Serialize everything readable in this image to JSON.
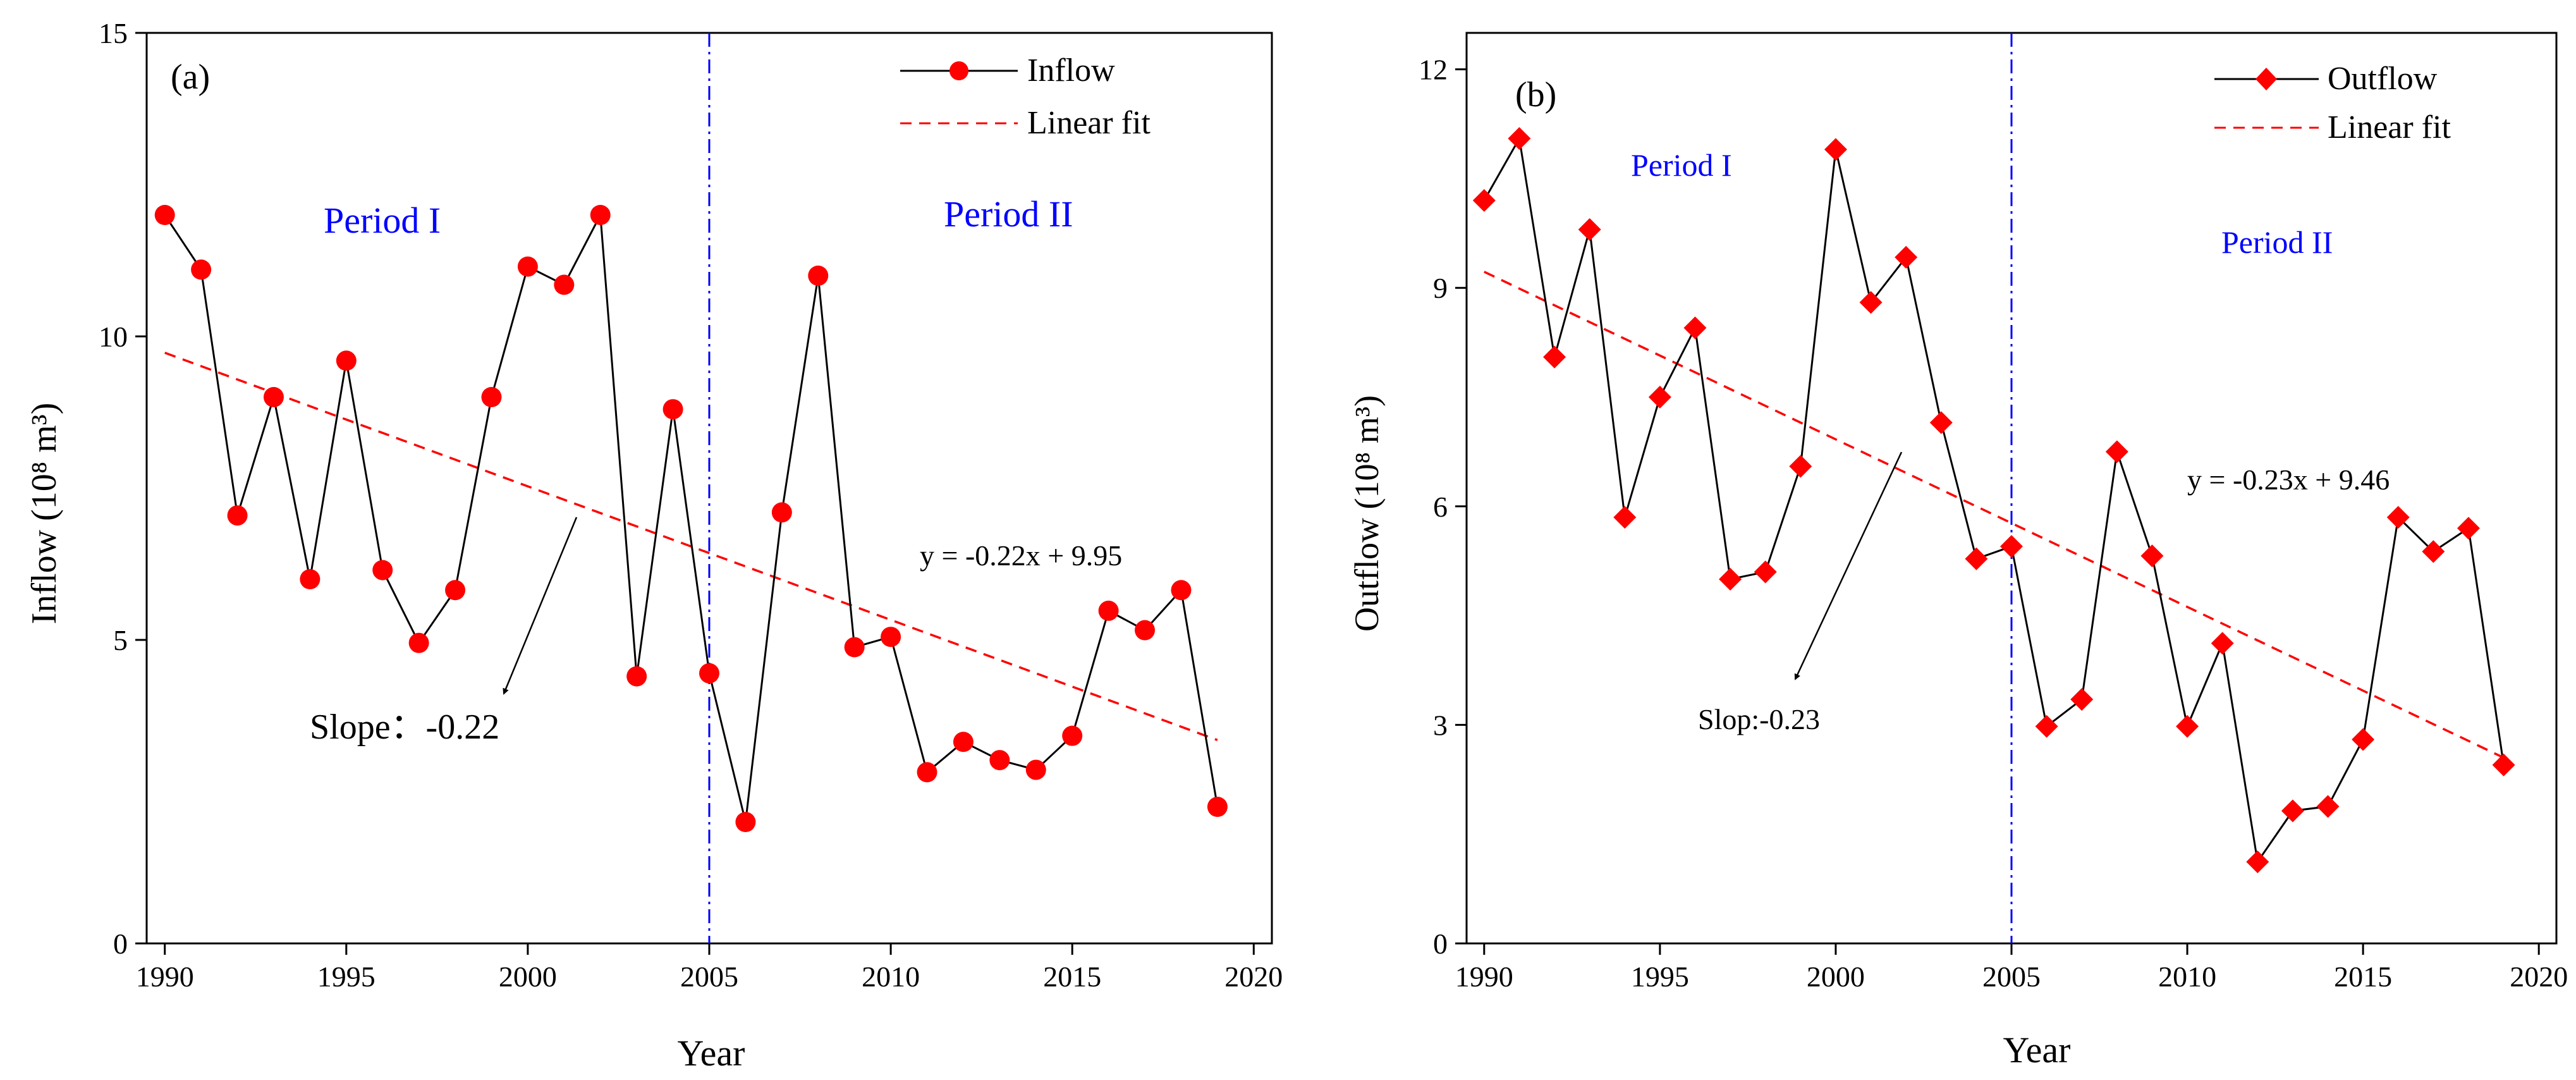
{
  "colors": {
    "series_line": "#000000",
    "marker": "#ff0000",
    "fit_line": "#ff0000",
    "divider": "#0000ff",
    "period_text": "#0000ff"
  },
  "chart_data": [
    {
      "type": "line",
      "panel_label": "(a)",
      "xlabel": "Year",
      "ylabel": "Inflow (10⁸ m³)",
      "xlim": [
        1989.5,
        2020.5
      ],
      "ylim": [
        0,
        15
      ],
      "xticks": [
        1990,
        1995,
        2000,
        2005,
        2010,
        2015,
        2020
      ],
      "yticks": [
        0,
        5,
        10,
        15
      ],
      "grid": false,
      "legend_position": "top-right",
      "x": [
        1990,
        1991,
        1992,
        1993,
        1994,
        1995,
        1996,
        1997,
        1998,
        1999,
        2000,
        2001,
        2002,
        2003,
        2004,
        2005,
        2006,
        2007,
        2008,
        2009,
        2010,
        2011,
        2012,
        2013,
        2014,
        2015,
        2016,
        2017,
        2018,
        2019
      ],
      "series": [
        {
          "name": "Inflow",
          "marker": "circle",
          "values": [
            12.0,
            11.1,
            7.05,
            9.0,
            6.0,
            9.6,
            6.15,
            4.95,
            5.82,
            9.0,
            11.15,
            10.85,
            12.0,
            4.4,
            8.8,
            4.45,
            2.0,
            7.1,
            11.0,
            4.88,
            5.05,
            2.82,
            3.32,
            3.02,
            2.86,
            3.42,
            5.48,
            5.16,
            5.82,
            2.25
          ]
        }
      ],
      "fit": {
        "name": "Linear fit",
        "x": [
          1990,
          2019
        ],
        "y": [
          9.73,
          3.35
        ]
      },
      "divider_x": 2005,
      "annotations": {
        "period1": "Period I",
        "period2": "Period II",
        "equation": "y = -0.22x + 9.95",
        "slope": "Slope：-0.22"
      }
    },
    {
      "type": "line",
      "panel_label": "(b)",
      "xlabel": "Year",
      "ylabel": "Outflow (10⁸ m³)",
      "xlim": [
        1989.5,
        2020.5
      ],
      "ylim": [
        0,
        12.5
      ],
      "xticks": [
        1990,
        1995,
        2000,
        2005,
        2010,
        2015,
        2020
      ],
      "yticks": [
        0,
        3,
        6,
        9,
        12
      ],
      "grid": false,
      "legend_position": "top-right",
      "x": [
        1990,
        1991,
        1992,
        1993,
        1994,
        1995,
        1996,
        1997,
        1998,
        1999,
        2000,
        2001,
        2002,
        2003,
        2004,
        2005,
        2006,
        2007,
        2008,
        2009,
        2010,
        2011,
        2012,
        2013,
        2014,
        2015,
        2016,
        2017,
        2018,
        2019
      ],
      "series": [
        {
          "name": "Outflow",
          "marker": "diamond",
          "values": [
            10.2,
            11.05,
            8.05,
            9.8,
            5.85,
            7.5,
            8.45,
            5.0,
            5.1,
            6.55,
            10.9,
            8.8,
            9.42,
            7.15,
            5.28,
            5.45,
            2.98,
            3.35,
            6.75,
            5.32,
            2.98,
            4.12,
            1.12,
            1.82,
            1.88,
            2.8,
            5.85,
            5.38,
            5.7,
            2.45
          ]
        }
      ],
      "fit": {
        "name": "Linear fit",
        "x": [
          1990,
          2019
        ],
        "y": [
          9.22,
          2.55
        ]
      },
      "divider_x": 2005,
      "annotations": {
        "period1": "Period I",
        "period2": "Period II",
        "equation": "y = -0.23x + 9.46",
        "slope": "Slop:-0.23"
      }
    }
  ]
}
